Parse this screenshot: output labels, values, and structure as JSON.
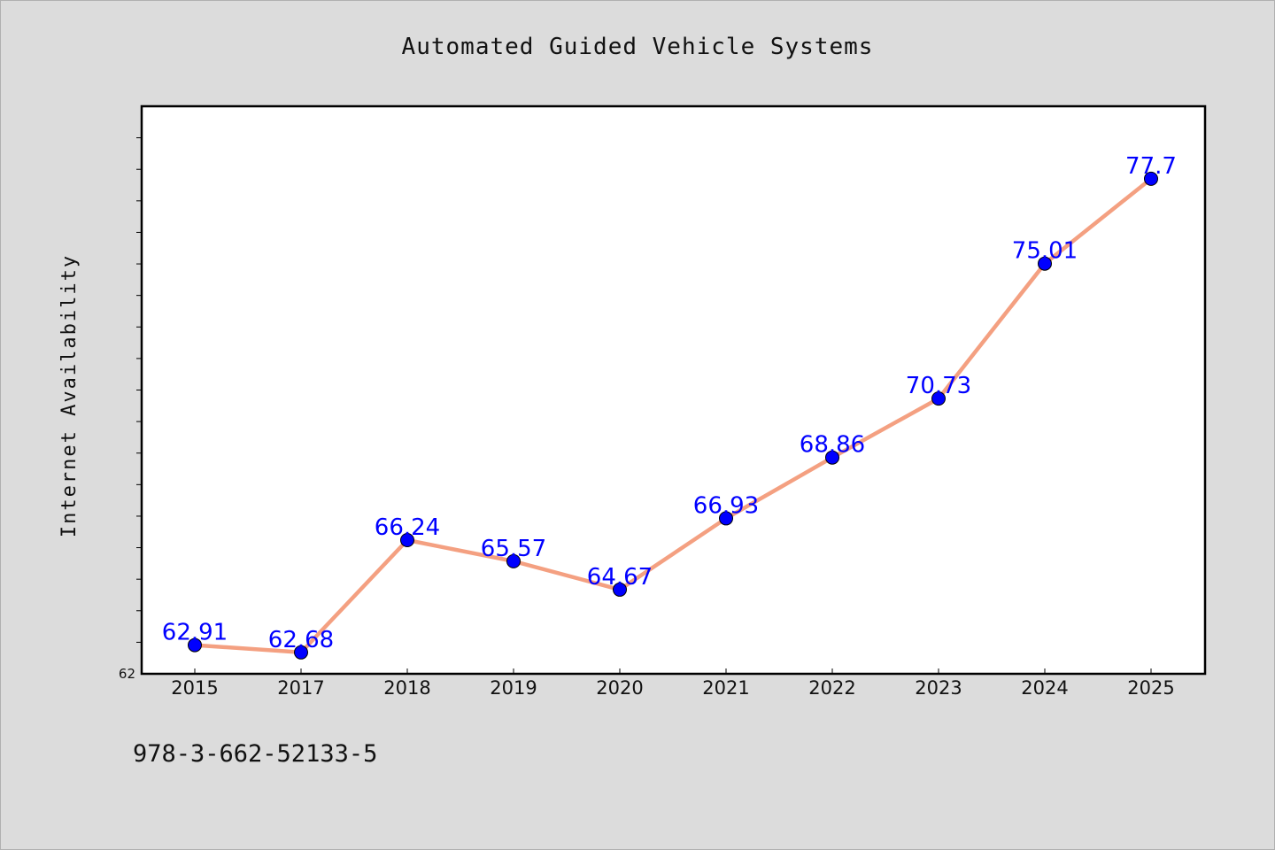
{
  "footer": {
    "isbn": "978-3-662-52133-5"
  },
  "chart_data": {
    "type": "line",
    "title": "Automated Guided Vehicle Systems",
    "xlabel": "",
    "ylabel": "Internet Availability",
    "categories": [
      "2015",
      "2017",
      "2018",
      "2019",
      "2020",
      "2021",
      "2022",
      "2023",
      "2024",
      "2025"
    ],
    "values": [
      62.91,
      62.68,
      66.24,
      65.57,
      64.67,
      66.93,
      68.86,
      70.73,
      75.01,
      77.7
    ],
    "data_labels": [
      "62.91",
      "62.68",
      "66.24",
      "65.57",
      "64.67",
      "66.93",
      "68.86",
      "70.73",
      "75.01",
      "77.7"
    ],
    "ylim": [
      62,
      80
    ],
    "y_tick_labels": [
      "62"
    ],
    "y_minor_tick_step": 1,
    "grid": false,
    "legend": "none",
    "colors": {
      "line": "#f4a081",
      "marker_fill": "#0000ff",
      "marker_edge": "#000000",
      "data_label": "#0000ff",
      "background": "#dcdcdc",
      "plot_background": "#ffffff"
    }
  }
}
